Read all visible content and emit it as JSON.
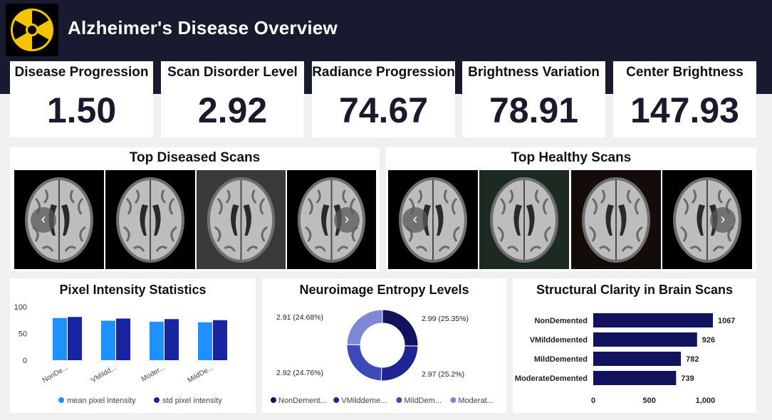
{
  "header": {
    "title": "Alzheimer's Disease Overview",
    "logo_icon": "radiation-icon",
    "colors": {
      "header_bg": "#181a30",
      "logo_yellow": "#f5c400"
    }
  },
  "kpis": [
    {
      "label": "Disease Progression",
      "value": "1.50"
    },
    {
      "label": "Scan Disorder Level",
      "value": "2.92"
    },
    {
      "label": "Radiance Progression",
      "value": "74.67"
    },
    {
      "label": "Brightness Variation",
      "value": "78.91"
    },
    {
      "label": "Center Brightness",
      "value": "147.93"
    }
  ],
  "diseased_scans": {
    "title": "Top Diseased Scans",
    "prev_icon": "chevron-left-icon",
    "next_icon": "chevron-right-icon",
    "prev_label": "‹",
    "next_label": "›",
    "tints": [
      "#000000",
      "#000000",
      "#3a3a3a",
      "#000000"
    ]
  },
  "healthy_scans": {
    "title": "Top Healthy Scans",
    "prev_icon": "chevron-left-icon",
    "next_icon": "chevron-right-icon",
    "prev_label": "‹",
    "next_label": "›",
    "tints": [
      "#000000",
      "#1d2a22",
      "#140c08",
      "#000000"
    ]
  },
  "chart_data": [
    {
      "type": "bar",
      "title": "Pixel Intensity Statistics",
      "categories": [
        "NonDe...",
        "VMildd...",
        "Moder...",
        "MildDe..."
      ],
      "series": [
        {
          "name": "mean pixel intensity",
          "values": [
            79,
            74,
            72,
            71
          ],
          "color": "#1e90ff"
        },
        {
          "name": "std pixel intensity",
          "values": [
            81,
            78,
            77,
            75
          ],
          "color": "#1726a0"
        }
      ],
      "yticks": [
        "0",
        "50",
        "100"
      ],
      "ylim": [
        0,
        100
      ],
      "legend": "bottom"
    },
    {
      "type": "pie",
      "title": "Neuroimage Entropy Levels",
      "slices": [
        {
          "name": "NonDement...",
          "value": 2.99,
          "label": "2.99 (25.35%)",
          "color": "#12135e"
        },
        {
          "name": "VMilddeme...",
          "value": 2.97,
          "label": "2.97 (25.2%)",
          "color": "#1f2694"
        },
        {
          "name": "MildDem...",
          "value": 2.92,
          "label": "2.92 (24.76%)",
          "color": "#3c4bb8"
        },
        {
          "name": "Moderat...",
          "value": 2.91,
          "label": "2.91 (24.68%)",
          "color": "#7f88d6"
        }
      ],
      "legend": "bottom"
    },
    {
      "type": "bar",
      "orientation": "horizontal",
      "title": "Structural Clarity in Brain Scans",
      "categories": [
        "NonDemented",
        "VMilddemented",
        "MildDemented",
        "ModerateDemented"
      ],
      "values": [
        1067,
        926,
        782,
        739
      ],
      "value_labels": [
        "1067",
        "926",
        "782",
        "739"
      ],
      "xticks": [
        "0",
        "500",
        "1,000"
      ],
      "xlim": [
        0,
        1067
      ],
      "color": "#12135e"
    }
  ]
}
